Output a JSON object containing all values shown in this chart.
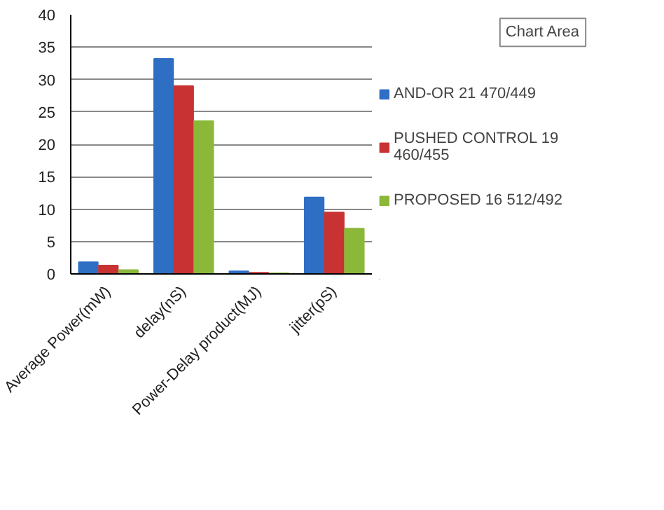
{
  "chart_data": {
    "type": "bar",
    "categories": [
      "Average Power(mW)",
      "delay(nS)",
      "Power-Delay product(MJ)",
      "jitter(pS)"
    ],
    "series": [
      {
        "name": "AND-OR 21 470/449",
        "color": "#2e6fc4",
        "values": [
          1.8,
          33.2,
          0.4,
          11.8
        ]
      },
      {
        "name": "PUSHED CONTROL 19 460/455",
        "color": "#c83232",
        "values": [
          1.3,
          29,
          0.2,
          9.5
        ]
      },
      {
        "name": "PROPOSED 16 512/492",
        "color": "#8cb83a",
        "values": [
          0.6,
          23.6,
          0.1,
          7
        ]
      }
    ],
    "ylim": [
      0,
      40
    ],
    "yticks": [
      0,
      5,
      10,
      15,
      20,
      25,
      30,
      35,
      40
    ],
    "grid": "y",
    "legend": "right",
    "annotations": [
      "Chart Area"
    ]
  }
}
